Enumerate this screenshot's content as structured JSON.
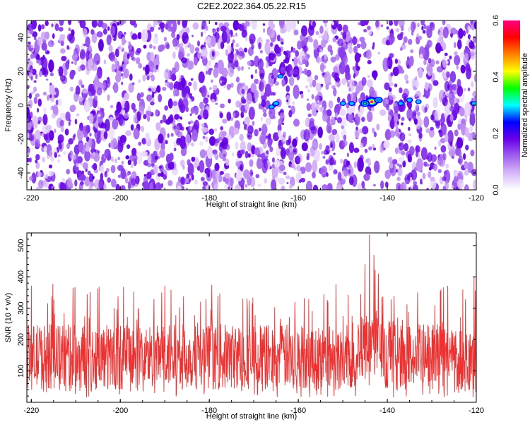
{
  "figure": {
    "title": "C2E2.2022.364.05.22.R15"
  },
  "chart_data": [
    {
      "type": "heatmap",
      "xlabel": "Height of straight line (km)",
      "ylabel": "Frequency (Hz)",
      "xlim": [
        -221,
        -120
      ],
      "ylim": [
        -50,
        50
      ],
      "x_ticks": [
        -220,
        -200,
        -180,
        -160,
        -140,
        -120
      ],
      "y_ticks": [
        -40,
        -20,
        0,
        20,
        40
      ],
      "colorbar": {
        "label": "Normalized spectral amplitude",
        "range": [
          0.0,
          0.6
        ],
        "ticks": [
          0.0,
          0.2,
          0.4,
          0.6
        ],
        "colormap": [
          "#ffffff",
          "#d8b8f8",
          "#a060f0",
          "#6a00e8",
          "#0000ff",
          "#00ffff",
          "#00ff00",
          "#ffff00",
          "#ff8000",
          "#ff0000",
          "#ff0080"
        ]
      },
      "features": [
        {
          "x": -143.5,
          "y": 2,
          "value": 0.6
        },
        {
          "x": -145,
          "y": 1,
          "value": 0.35
        },
        {
          "x": -142,
          "y": 3,
          "value": 0.3
        },
        {
          "x": -148,
          "y": 1,
          "value": 0.15
        },
        {
          "x": -150,
          "y": 1,
          "value": 0.12
        },
        {
          "x": -135,
          "y": 3,
          "value": 0.15
        },
        {
          "x": -133,
          "y": 2,
          "value": 0.12
        },
        {
          "x": -137,
          "y": 1,
          "value": 0.12
        },
        {
          "x": -165,
          "y": 1,
          "value": 0.15
        },
        {
          "x": -166,
          "y": -1,
          "value": 0.12
        },
        {
          "x": -164,
          "y": 17,
          "value": 0.1
        },
        {
          "x": -120.5,
          "y": 1,
          "value": 0.12
        }
      ]
    },
    {
      "type": "line",
      "xlabel": "Height of straight line (km)",
      "ylabel": "SNR (10 * v/v)",
      "xlim": [
        -221,
        -120
      ],
      "ylim": [
        0,
        540
      ],
      "x_ticks": [
        -220,
        -200,
        -180,
        -160,
        -140,
        -120
      ],
      "y_ticks": [
        100,
        200,
        300,
        400,
        500
      ],
      "series": [
        {
          "color": "#ee3030",
          "baseline": 140,
          "typical_range": [
            40,
            250
          ],
          "peaks_to": 380
        }
      ],
      "notable_peaks": [
        {
          "x": -144,
          "y": 535
        },
        {
          "x": -143,
          "y": 470
        },
        {
          "x": -145,
          "y": 440
        },
        {
          "x": -142,
          "y": 410
        },
        {
          "x": -120.5,
          "y": 400
        }
      ]
    }
  ]
}
